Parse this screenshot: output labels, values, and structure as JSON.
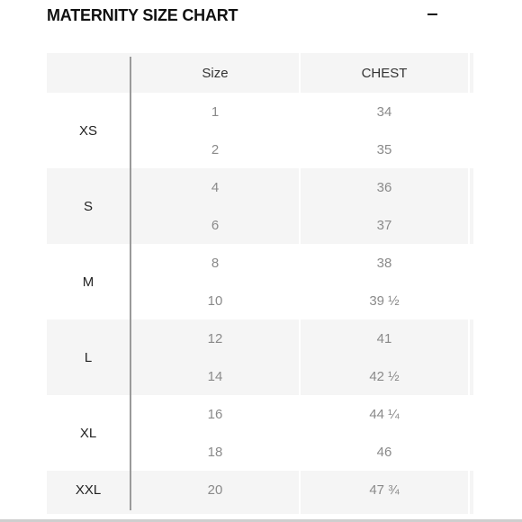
{
  "title": "MATERNITY SIZE CHART",
  "collapse_icon": "minus-icon",
  "columns": {
    "size": "Size",
    "chest": "CHEST"
  },
  "groups": [
    {
      "label": "XS",
      "rows": [
        {
          "size": "1",
          "chest": "34"
        },
        {
          "size": "2",
          "chest": "35"
        }
      ]
    },
    {
      "label": "S",
      "rows": [
        {
          "size": "4",
          "chest": "36"
        },
        {
          "size": "6",
          "chest": "37"
        }
      ]
    },
    {
      "label": "M",
      "rows": [
        {
          "size": "8",
          "chest": "38"
        },
        {
          "size": "10",
          "chest": "39 ½"
        }
      ]
    },
    {
      "label": "L",
      "rows": [
        {
          "size": "12",
          "chest": "41"
        },
        {
          "size": "14",
          "chest": "42 ½"
        }
      ]
    },
    {
      "label": "XL",
      "rows": [
        {
          "size": "16",
          "chest": "44 ¼"
        },
        {
          "size": "18",
          "chest": "46"
        }
      ]
    },
    {
      "label": "XXL",
      "rows": [
        {
          "size": "20",
          "chest": "47 ¾"
        }
      ]
    }
  ],
  "colors": {
    "header_text": "#111111",
    "value_text": "#8a8a8a",
    "band_gray": "#f5f5f5",
    "divider": "#9a9a9a"
  }
}
